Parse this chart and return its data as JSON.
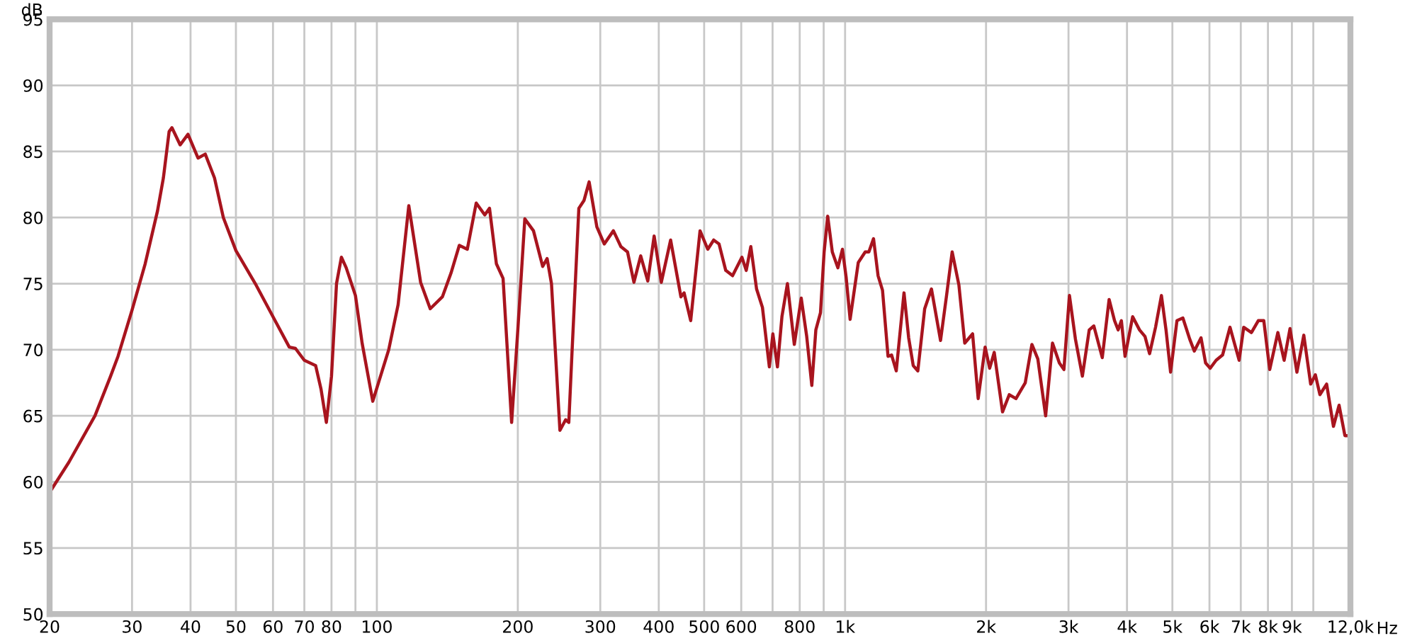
{
  "chart_data": {
    "type": "line",
    "ylabel": "dB",
    "xlabel": "Hz",
    "log": "x",
    "grid": true,
    "marker": "none",
    "line_style": "solid",
    "xlim": [
      20,
      12000
    ],
    "ylim": [
      50,
      95
    ],
    "xticks": [
      20,
      30,
      40,
      50,
      60,
      70,
      80,
      {
        "value": 90,
        "label": null
      },
      100,
      200,
      300,
      400,
      500,
      600,
      {
        "value": 700,
        "label": null
      },
      800,
      {
        "value": 900,
        "label": null
      },
      {
        "value": 1000,
        "label": "1k"
      },
      {
        "value": 2000,
        "label": "2k"
      },
      {
        "value": 3000,
        "label": "3k"
      },
      {
        "value": 4000,
        "label": "4k"
      },
      {
        "value": 5000,
        "label": "5k"
      },
      {
        "value": 6000,
        "label": "6k"
      },
      {
        "value": 7000,
        "label": "7k"
      },
      {
        "value": 8000,
        "label": "8k"
      },
      {
        "value": 9000,
        "label": "9k"
      },
      {
        "value": 10000,
        "label": null
      },
      {
        "value": 12000,
        "label": "12,0k"
      }
    ],
    "yticks": [
      50,
      55,
      60,
      65,
      70,
      75,
      80,
      85,
      90,
      95
    ],
    "series": [
      {
        "color": "#a8141e",
        "x": [
          20,
          22,
          25,
          27,
          28,
          30,
          32,
          34,
          35,
          36,
          36.5,
          38,
          39.5,
          41.5,
          43,
          45,
          47,
          50,
          55,
          60,
          65,
          67,
          70,
          74,
          76,
          78,
          80,
          82,
          84,
          86,
          90,
          93,
          98,
          106,
          111,
          117,
          124,
          130,
          138,
          144,
          150,
          156,
          163,
          170,
          174,
          180,
          186,
          194,
          200,
          207,
          216,
          226,
          231,
          236,
          246,
          253,
          257,
          261,
          270,
          277,
          284,
          295,
          306,
          320,
          332,
          343,
          354,
          366,
          379,
          391,
          405,
          424,
          446,
          453,
          468,
          490,
          509,
          524,
          538,
          556,
          575,
          602,
          615,
          629,
          647,
          666,
          689,
          701,
          717,
          733,
          753,
          779,
          806,
          828,
          849,
          866,
          886,
          902,
          918,
          939,
          965,
          987,
          1005,
          1025,
          1067,
          1104,
          1124,
          1150,
          1176,
          1202,
          1235,
          1257,
          1286,
          1336,
          1367,
          1398,
          1430,
          1479,
          1529,
          1599,
          1647,
          1693,
          1750,
          1801,
          1872,
          1924,
          1991,
          2036,
          2082,
          2169,
          2242,
          2317,
          2425,
          2506,
          2580,
          2681,
          2773,
          2868,
          2933,
          3014,
          3104,
          3212,
          3322,
          3398,
          3542,
          3663,
          3762,
          3830,
          3891,
          3962,
          4113,
          4254,
          4370,
          4470,
          4603,
          4738,
          4846,
          4956,
          5114,
          5265,
          5445,
          5569,
          5757,
          5887,
          6022,
          6200,
          6400,
          6638,
          6943,
          7101,
          7376,
          7629,
          7838,
          8070,
          8400,
          8663,
          8918,
          9225,
          9542,
          9870,
          10100,
          10330,
          10676,
          11040,
          11350,
          11680,
          12000
        ],
        "values": [
          59.2,
          61.5,
          65,
          68,
          69.5,
          73,
          76.5,
          80.5,
          83,
          86.5,
          86.8,
          85.5,
          86.3,
          84.5,
          84.8,
          83,
          80,
          77.5,
          75,
          72.5,
          70.2,
          70.1,
          69.2,
          68.8,
          67,
          64.5,
          68,
          75,
          77,
          76.2,
          74.1,
          70.5,
          66.1,
          70,
          73.4,
          80.9,
          75.1,
          73.1,
          74,
          75.8,
          77.9,
          77.6,
          81.1,
          80.2,
          80.7,
          76.5,
          75.4,
          64.5,
          71.5,
          79.9,
          79,
          76.3,
          76.9,
          75,
          63.9,
          64.7,
          64.5,
          69.7,
          80.7,
          81.3,
          82.7,
          79.3,
          78,
          79,
          77.8,
          77.4,
          75.1,
          77.1,
          75.2,
          78.6,
          75.1,
          78.3,
          74,
          74.3,
          72.2,
          79,
          77.6,
          78.3,
          78,
          76,
          75.6,
          77,
          76,
          77.8,
          74.6,
          73.2,
          68.7,
          71.2,
          68.7,
          72.5,
          75,
          70.4,
          73.9,
          71,
          67.3,
          71.5,
          72.8,
          77.4,
          80.1,
          77.4,
          76.2,
          77.6,
          75.5,
          72.3,
          76.6,
          77.4,
          77.4,
          78.4,
          75.6,
          74.5,
          69.5,
          69.6,
          68.4,
          74.3,
          70.9,
          68.8,
          68.4,
          73.1,
          74.6,
          70.7,
          74.1,
          77.4,
          74.9,
          70.5,
          71.2,
          66.3,
          70.2,
          68.6,
          69.8,
          65.3,
          66.6,
          66.3,
          67.5,
          70.4,
          69.3,
          65,
          70.5,
          69,
          68.5,
          74.1,
          70.8,
          68,
          71.5,
          71.8,
          69.4,
          73.8,
          72.2,
          71.5,
          72.2,
          69.5,
          72.5,
          71.5,
          71,
          69.7,
          71.7,
          74.1,
          71.5,
          68.3,
          72.2,
          72.4,
          70.8,
          69.9,
          70.9,
          69,
          68.6,
          69.2,
          69.6,
          71.7,
          69.2,
          71.7,
          71.3,
          72.2,
          72.2,
          68.5,
          71.3,
          69.2,
          71.6,
          68.3,
          71.1,
          67.4,
          68.1,
          66.6,
          67.4,
          64.2,
          65.8,
          63.5,
          63.5
        ]
      }
    ]
  }
}
